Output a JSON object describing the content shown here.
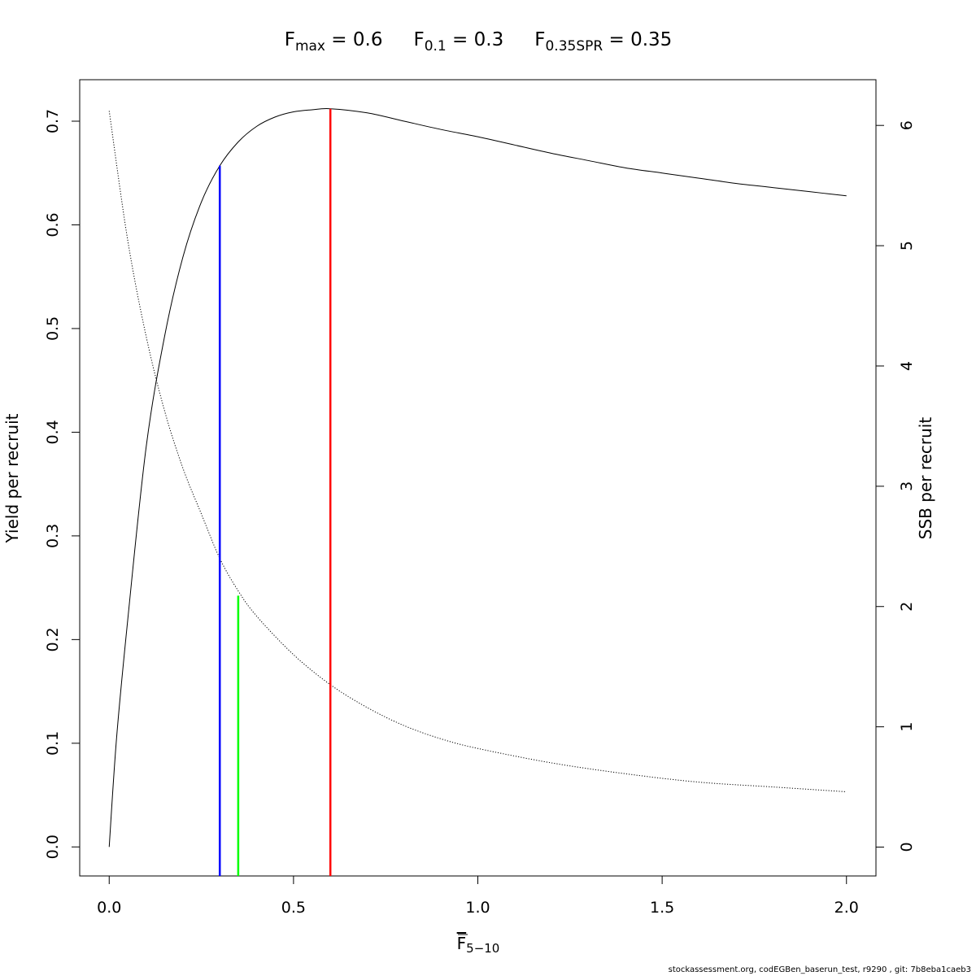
{
  "chart_data": {
    "type": "line",
    "title_parts": [
      {
        "main": "F",
        "sub": "max",
        "rest": " = 0.6"
      },
      {
        "main": "F",
        "sub": "0.1",
        "rest": " = 0.3"
      },
      {
        "main": "F",
        "sub": "0.35SPR",
        "rest": " = 0.35"
      }
    ],
    "xlabel": {
      "main": "F",
      "sub": "5−10"
    },
    "ylabel_left": "Yield per recruit",
    "ylabel_right": "SSB per recruit",
    "xlim": [
      -0.08,
      2.08
    ],
    "ylim_left": [
      -0.028,
      0.74
    ],
    "ylim_right": [
      -0.24,
      6.38
    ],
    "x_ticks": [
      0.0,
      0.5,
      1.0,
      1.5,
      2.0
    ],
    "x_tick_labels": [
      "0.0",
      "0.5",
      "1.0",
      "1.5",
      "2.0"
    ],
    "y_left_ticks": [
      0.0,
      0.1,
      0.2,
      0.3,
      0.4,
      0.5,
      0.6,
      0.7
    ],
    "y_left_tick_labels": [
      "0.0",
      "0.1",
      "0.2",
      "0.3",
      "0.4",
      "0.5",
      "0.6",
      "0.7"
    ],
    "y_right_ticks": [
      0,
      1,
      2,
      3,
      4,
      5,
      6
    ],
    "y_right_tick_labels": [
      "0",
      "1",
      "2",
      "3",
      "4",
      "5",
      "6"
    ],
    "series": [
      {
        "axis": "left",
        "style": "solid",
        "color": "#000000",
        "x": [
          0.0,
          0.02,
          0.05,
          0.1,
          0.15,
          0.2,
          0.25,
          0.3,
          0.35,
          0.4,
          0.45,
          0.5,
          0.55,
          0.6,
          0.7,
          0.8,
          0.9,
          1.0,
          1.1,
          1.2,
          1.3,
          1.4,
          1.5,
          1.6,
          1.7,
          1.8,
          1.9,
          2.0
        ],
        "y": [
          0.0,
          0.105,
          0.218,
          0.385,
          0.492,
          0.569,
          0.622,
          0.657,
          0.68,
          0.695,
          0.704,
          0.709,
          0.711,
          0.712,
          0.708,
          0.7,
          0.692,
          0.685,
          0.677,
          0.669,
          0.662,
          0.655,
          0.65,
          0.645,
          0.64,
          0.636,
          0.632,
          0.628
        ]
      },
      {
        "axis": "right",
        "style": "dotted",
        "color": "#000000",
        "x": [
          0.0,
          0.05,
          0.1,
          0.15,
          0.2,
          0.25,
          0.3,
          0.35,
          0.4,
          0.5,
          0.6,
          0.7,
          0.8,
          0.9,
          1.0,
          1.2,
          1.4,
          1.6,
          1.8,
          2.0
        ],
        "y": [
          6.12,
          5.05,
          4.25,
          3.63,
          3.15,
          2.77,
          2.4,
          2.13,
          1.92,
          1.6,
          1.35,
          1.16,
          1.01,
          0.9,
          0.82,
          0.7,
          0.61,
          0.54,
          0.5,
          0.46
        ]
      }
    ],
    "reference_lines": [
      {
        "x": 0.3,
        "y": 0.657,
        "axis": "left",
        "color": "#0000ff"
      },
      {
        "x": 0.35,
        "y": 2.09,
        "axis": "right",
        "color": "#00ff00"
      },
      {
        "x": 0.6,
        "y": 0.712,
        "axis": "left",
        "color": "#ff0000"
      }
    ]
  },
  "footer": "stockassessment.org, codEGBen_baserun_test, r9290 , git: 7b8eba1caeb3"
}
